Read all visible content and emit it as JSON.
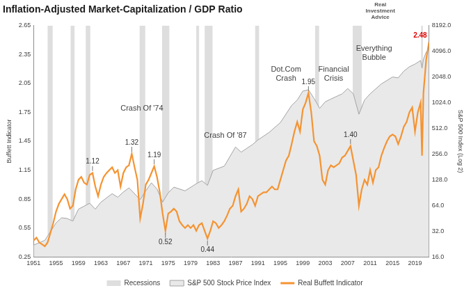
{
  "chart_data": {
    "type": "line",
    "title": "Inflation-Adjusted Market-Capitalization / GDP Ratio",
    "logo": [
      "Real",
      "Investment",
      "Advice"
    ],
    "y_label": "Buffett Indicator",
    "y2_label": "S&P 500 Index (Log 2)",
    "xlim": [
      1951,
      2021.5
    ],
    "xticks": [
      1951,
      1955,
      1959,
      1963,
      1967,
      1971,
      1975,
      1979,
      1983,
      1987,
      1991,
      1995,
      1999,
      2003,
      2007,
      2011,
      2015,
      2019
    ],
    "ylim": [
      0.25,
      2.65
    ],
    "yticks": [
      0.25,
      0.55,
      0.85,
      1.15,
      1.45,
      1.75,
      2.05,
      2.35,
      2.65
    ],
    "y2lim": [
      16,
      8192
    ],
    "y2ticks": [
      {
        "value": 16,
        "label": "16.0"
      },
      {
        "value": 32,
        "label": "32.0"
      },
      {
        "value": 64,
        "label": "64.0"
      },
      {
        "value": 128,
        "label": "128.0"
      },
      {
        "value": 256,
        "label": "256.0"
      },
      {
        "value": 512,
        "label": "512.0"
      },
      {
        "value": 1024,
        "label": "1024.0"
      },
      {
        "value": 2048,
        "label": "2048.0"
      },
      {
        "value": 4096,
        "label": "4096.0"
      },
      {
        "value": 8192,
        "label": "8192.0"
      }
    ],
    "log": "y2",
    "grid": false,
    "legend": "bottom",
    "recessions": {
      "name": "Recessions",
      "color": "#dedede",
      "periods": [
        [
          1953.5,
          1954.4
        ],
        [
          1957.6,
          1958.3
        ],
        [
          1960.3,
          1961.1
        ],
        [
          1969.9,
          1970.9
        ],
        [
          1973.9,
          1975.2
        ],
        [
          1980.0,
          1980.5
        ],
        [
          1981.5,
          1982.9
        ],
        [
          1990.5,
          1991.2
        ],
        [
          2001.2,
          2001.9
        ],
        [
          2007.9,
          2009.5
        ],
        [
          2020.1,
          2020.4
        ]
      ]
    },
    "series": [
      {
        "name": "S&P 500 Stock Price Index",
        "type": "area",
        "axis": "y2",
        "color": "#e9e9e9",
        "x": [
          1951,
          1953,
          1955,
          1956,
          1957,
          1958,
          1959,
          1961,
          1962,
          1963,
          1965,
          1966,
          1967,
          1968,
          1970,
          1971,
          1972,
          1973,
          1974,
          1975,
          1976,
          1978,
          1980,
          1981,
          1982,
          1983,
          1985,
          1987,
          1988,
          1990,
          1991,
          1993,
          1995,
          1997,
          1998,
          1999,
          2000,
          2001,
          2002,
          2003,
          2004,
          2006,
          2007,
          2008,
          2009,
          2010,
          2011,
          2013,
          2015,
          2016,
          2017,
          2018,
          2019,
          2020,
          2020.25,
          2020.5,
          2021,
          2021.5
        ],
        "values": [
          22,
          25,
          40,
          46,
          45,
          42,
          58,
          68,
          58,
          70,
          88,
          80,
          92,
          103,
          75,
          95,
          118,
          100,
          70,
          90,
          105,
          95,
          115,
          125,
          110,
          165,
          185,
          310,
          270,
          330,
          375,
          460,
          600,
          950,
          1100,
          1400,
          1450,
          1150,
          880,
          1050,
          1130,
          1300,
          1500,
          1300,
          750,
          1100,
          1300,
          1700,
          2050,
          2000,
          2400,
          2700,
          2900,
          3200,
          2600,
          3300,
          4000,
          4350
        ]
      },
      {
        "name": "Real Buffett Indicator",
        "type": "line",
        "color": "#f59331",
        "x": [
          1951,
          1951.5,
          1952,
          1952.5,
          1953,
          1953.5,
          1954,
          1954.5,
          1955,
          1955.5,
          1956,
          1956.5,
          1957,
          1957.5,
          1958,
          1958.5,
          1959,
          1959.5,
          1960,
          1960.5,
          1961,
          1961.5,
          1962,
          1962.5,
          1963,
          1963.5,
          1964,
          1964.5,
          1965,
          1965.5,
          1966,
          1966.5,
          1967,
          1967.5,
          1968,
          1968.5,
          1969,
          1969.5,
          1970,
          1970.5,
          1971,
          1971.5,
          1972,
          1972.5,
          1973,
          1973.5,
          1974,
          1974.5,
          1975,
          1975.5,
          1976,
          1976.5,
          1977,
          1977.5,
          1978,
          1978.5,
          1979,
          1979.5,
          1980,
          1980.5,
          1981,
          1981.5,
          1982,
          1982.5,
          1983,
          1983.5,
          1984,
          1984.5,
          1985,
          1985.5,
          1986,
          1986.5,
          1987,
          1987.5,
          1988,
          1988.5,
          1989,
          1989.5,
          1990,
          1990.5,
          1991,
          1991.5,
          1992,
          1992.5,
          1993,
          1993.5,
          1994,
          1994.5,
          1995,
          1995.5,
          1996,
          1996.5,
          1997,
          1997.5,
          1998,
          1998.5,
          1999,
          1999.5,
          2000,
          2000.5,
          2001,
          2001.5,
          2002,
          2002.5,
          2003,
          2003.5,
          2004,
          2004.5,
          2005,
          2005.5,
          2006,
          2006.5,
          2007,
          2007.5,
          2008,
          2008.5,
          2009,
          2009.5,
          2010,
          2010.5,
          2011,
          2011.5,
          2012,
          2012.5,
          2013,
          2013.5,
          2014,
          2014.5,
          2015,
          2015.5,
          2016,
          2016.5,
          2017,
          2017.5,
          2018,
          2018.5,
          2019,
          2019.5,
          2020,
          2020.25,
          2020.5,
          2021,
          2021.5
        ],
        "values": [
          0.42,
          0.45,
          0.4,
          0.38,
          0.36,
          0.4,
          0.5,
          0.6,
          0.72,
          0.8,
          0.85,
          0.9,
          0.85,
          0.75,
          0.78,
          0.95,
          1.05,
          1.08,
          1.02,
          1.0,
          1.1,
          1.12,
          0.98,
          0.88,
          1.0,
          1.08,
          1.12,
          1.15,
          1.18,
          1.12,
          1.15,
          0.98,
          1.12,
          1.18,
          1.2,
          1.32,
          1.18,
          1.05,
          0.65,
          0.8,
          1.0,
          1.05,
          1.12,
          1.19,
          1.08,
          0.92,
          0.7,
          0.52,
          0.7,
          0.72,
          0.75,
          0.72,
          0.62,
          0.58,
          0.55,
          0.58,
          0.55,
          0.58,
          0.52,
          0.58,
          0.6,
          0.52,
          0.44,
          0.52,
          0.62,
          0.6,
          0.55,
          0.58,
          0.62,
          0.68,
          0.75,
          0.78,
          0.88,
          0.95,
          0.72,
          0.75,
          0.8,
          0.88,
          0.85,
          0.78,
          0.88,
          0.9,
          0.92,
          0.92,
          0.95,
          0.98,
          0.95,
          0.95,
          1.05,
          1.15,
          1.25,
          1.3,
          1.42,
          1.55,
          1.65,
          1.55,
          1.78,
          1.85,
          1.95,
          1.75,
          1.45,
          1.4,
          1.3,
          1.05,
          1.0,
          1.15,
          1.2,
          1.18,
          1.2,
          1.22,
          1.28,
          1.3,
          1.35,
          1.4,
          1.25,
          1.1,
          0.78,
          0.95,
          1.05,
          1.0,
          1.15,
          1.02,
          1.15,
          1.18,
          1.3,
          1.38,
          1.45,
          1.5,
          1.52,
          1.5,
          1.42,
          1.5,
          1.6,
          1.65,
          1.75,
          1.8,
          1.55,
          1.75,
          1.85,
          1.3,
          1.95,
          2.3,
          2.48
        ]
      }
    ],
    "annotations": [
      {
        "lines": [
          "Crash Of '74"
        ],
        "x": 1970.3,
        "y": 1.79
      },
      {
        "lines": [
          "Crash Of '87"
        ],
        "x": 1985.2,
        "y": 1.51
      },
      {
        "lines": [
          "Dot.Com",
          "Crash"
        ],
        "x": 1996,
        "y": 2.15
      },
      {
        "lines": [
          "Financial",
          "Crisis"
        ],
        "x": 2004.5,
        "y": 2.15
      },
      {
        "lines": [
          "Everything",
          "Bubble"
        ],
        "x": 2011.7,
        "y": 2.36
      }
    ],
    "point_labels": [
      {
        "x": 1961.5,
        "value": 1.12
      },
      {
        "x": 1968.5,
        "value": 1.32
      },
      {
        "x": 1972.5,
        "value": 1.19
      },
      {
        "x": 1974.5,
        "value": 0.52
      },
      {
        "x": 1982,
        "value": 0.44
      },
      {
        "x": 2000,
        "value": 1.95
      },
      {
        "x": 2007.5,
        "value": 1.4,
        "label": "1.40"
      },
      {
        "x": 2021.5,
        "value": 2.48,
        "color": "#e00000"
      }
    ]
  }
}
